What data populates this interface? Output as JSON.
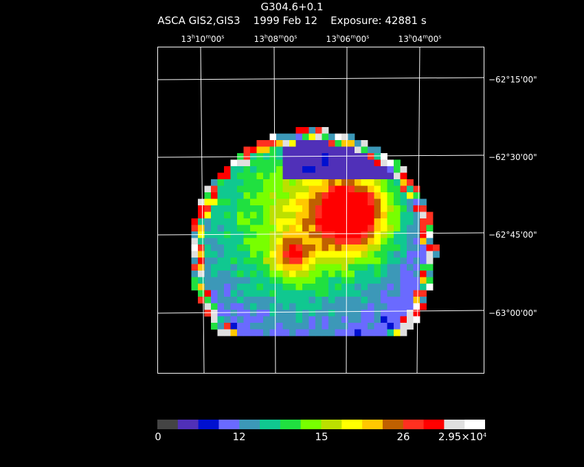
{
  "title": "G304.6+0.1",
  "subtitle": "ASCA GIS2,GIS3    1999 Feb 12    Exposure: 42881 s",
  "ra_labels": [
    {
      "h": "13",
      "m": "10",
      "s": "00"
    },
    {
      "h": "13",
      "m": "08",
      "s": "00"
    },
    {
      "h": "13",
      "m": "06",
      "s": "00"
    },
    {
      "h": "13",
      "m": "04",
      "s": "00"
    }
  ],
  "dec_labels": [
    "−62°15'00\"",
    "−62°30'00\"",
    "−62°45'00\"",
    "−63°00'00\""
  ],
  "colorbar": {
    "colors": [
      "#444444",
      "#5030b8",
      "#0010d0",
      "#6a6aff",
      "#3c98b8",
      "#10c890",
      "#20e040",
      "#78ff00",
      "#bce000",
      "#ffff00",
      "#ffc800",
      "#c06000",
      "#ff3020",
      "#ff0000",
      "#e0e0e0",
      "#ffffff"
    ],
    "labels": [
      "0",
      "12",
      "15",
      "26"
    ],
    "max_label_base": "2.95×10",
    "max_label_exp": "4"
  },
  "image": {
    "center_ra": "13h06m",
    "center_dec": "−62°38'",
    "bright_source": "red/yellow blob east of center (right)",
    "secondary_source": "orange/yellow knot below-left of center"
  }
}
